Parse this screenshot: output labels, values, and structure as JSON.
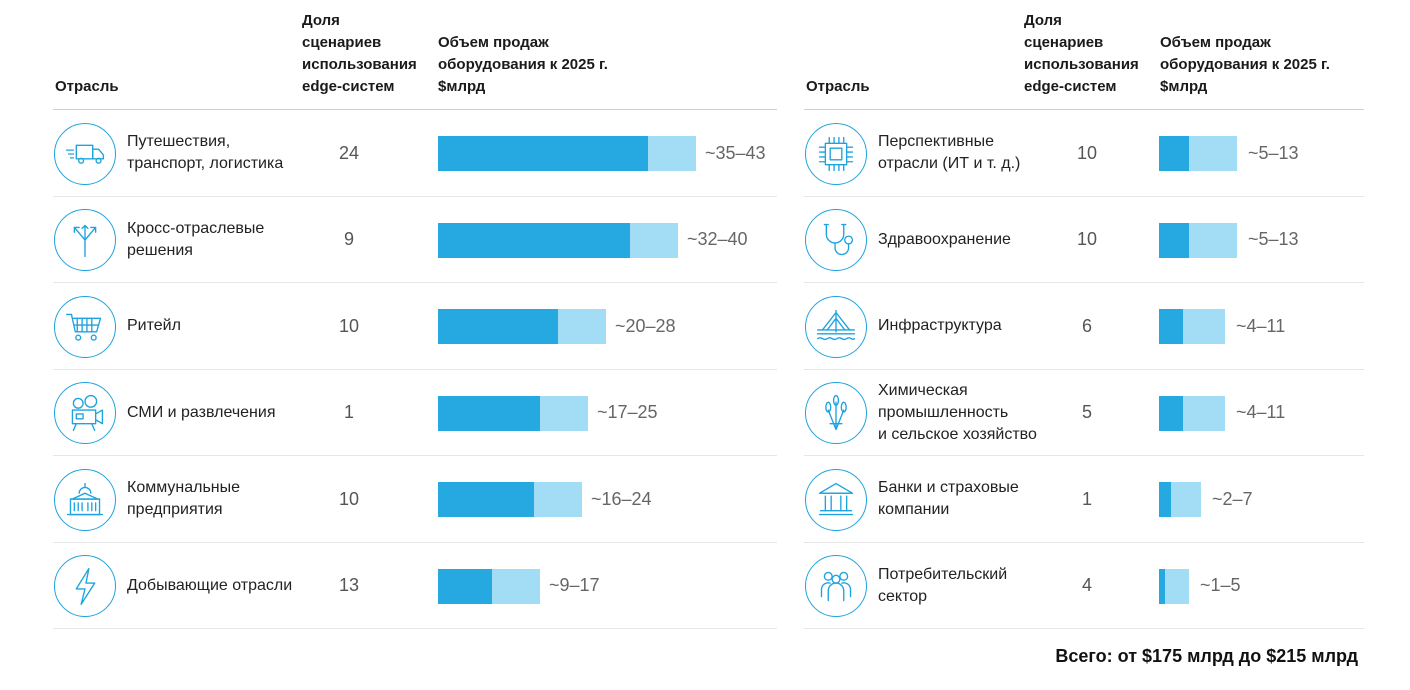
{
  "headers": {
    "industry": "Отрасль",
    "share": "Доля\nсценариев\nиспользования\nedge-систем",
    "sales": "Объем продаж\nоборудования к 2025 г.\n$млрд"
  },
  "total": "Всего: от $175 млрд до $215 млрд",
  "colors": {
    "bar_min": "#26a9e1",
    "bar_ext": "#a3dcf5",
    "icon": "#1ea3df"
  },
  "chart_data": [
    {
      "type": "bar",
      "orientation": "horizontal",
      "stacked_range": true,
      "xlabel": "Объем продаж оборудования к 2025 г. $млрд",
      "categories": [
        "Путешествия,\nтранспорт, логистика",
        "Кросс-отраслевые\nрешения",
        "Ритейл",
        "СМИ и развлечения",
        "Коммунальные\nпредприятия",
        "Добывающие отрасли"
      ],
      "shares": [
        "24",
        "9",
        "10",
        "1",
        "10",
        "13"
      ],
      "ranges": [
        "~35–43",
        "~32–40",
        "~20–28",
        "~17–25",
        "~16–24",
        "~9–17"
      ],
      "min_values": [
        35,
        32,
        20,
        17,
        16,
        9
      ],
      "max_values": [
        43,
        40,
        28,
        25,
        24,
        17
      ],
      "icons": [
        "truck-icon",
        "fork-arrows-icon",
        "shopping-cart-icon",
        "movie-camera-icon",
        "public-building-icon",
        "lightning-icon"
      ]
    },
    {
      "type": "bar",
      "orientation": "horizontal",
      "stacked_range": true,
      "xlabel": "Объем продаж оборудования к 2025 г. $млрд",
      "categories": [
        "Перспективные\nотрасли (ИТ и т. д.)",
        "Здравоохранение",
        "Инфраструктура",
        "Химическая\nпромышленность\nи сельское хозяйство",
        "Банки и страховые\nкомпании",
        "Потребительский\nсектор"
      ],
      "shares": [
        "10",
        "10",
        "6",
        "5",
        "1",
        "4"
      ],
      "ranges": [
        "~5–13",
        "~5–13",
        "~4–11",
        "~4–11",
        "~2–7",
        "~1–5"
      ],
      "min_values": [
        5,
        5,
        4,
        4,
        2,
        1
      ],
      "max_values": [
        13,
        13,
        11,
        11,
        7,
        5
      ],
      "icons": [
        "chip-icon",
        "stethoscope-icon",
        "bridge-icon",
        "wheat-icon",
        "bank-icon",
        "people-icon"
      ]
    }
  ]
}
